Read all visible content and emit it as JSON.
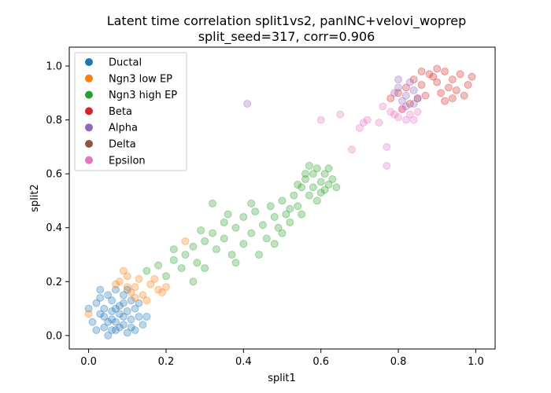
{
  "chart_data": {
    "type": "scatter",
    "title": "Latent time correlation split1vs2, panINC+velovi_woprep",
    "subtitle": "split_seed=317, corr=0.906",
    "xlabel": "split1",
    "ylabel": "split2",
    "xlim": [
      -0.05,
      1.05
    ],
    "ylim": [
      -0.05,
      1.07
    ],
    "xticks": [
      "0.0",
      "0.2",
      "0.4",
      "0.6",
      "0.8",
      "1.0"
    ],
    "yticks": [
      "0.0",
      "0.2",
      "0.4",
      "0.6",
      "0.8",
      "1.0"
    ],
    "grid": false,
    "legend_position": "upper-left",
    "point_alpha": 0.3,
    "series": [
      {
        "name": "Ductal",
        "color": "#1f77b4",
        "points": [
          [
            0.02,
            0.02
          ],
          [
            0.05,
            0.05
          ],
          [
            0.07,
            0.02
          ],
          [
            0.09,
            0.04
          ],
          [
            0.1,
            0.01
          ],
          [
            0.04,
            0.1
          ],
          [
            0.06,
            0.13
          ],
          [
            0.08,
            0.08
          ],
          [
            0.03,
            0.08
          ],
          [
            0.11,
            0.06
          ],
          [
            0.12,
            0.1
          ],
          [
            0.05,
            0.15
          ],
          [
            0.07,
            0.17
          ],
          [
            0.09,
            0.12
          ],
          [
            0.13,
            0.07
          ],
          [
            0.02,
            0.12
          ],
          [
            0.06,
            0.06
          ],
          [
            0.08,
            0.03
          ],
          [
            0.1,
            0.09
          ],
          [
            0.04,
            0.03
          ],
          [
            0.14,
            0.04
          ],
          [
            0.01,
            0.05
          ],
          [
            0.07,
            0.1
          ],
          [
            0.09,
            0.15
          ],
          [
            0.11,
            0.13
          ],
          [
            0.03,
            0.14
          ],
          [
            0.12,
            0.02
          ],
          [
            0.05,
            0.0
          ],
          [
            0.1,
            0.17
          ],
          [
            0.06,
            0.09
          ],
          [
            0.08,
            0.11
          ],
          [
            0.13,
            0.12
          ],
          [
            0.0,
            0.1
          ],
          [
            0.04,
            0.07
          ],
          [
            0.07,
            0.05
          ],
          [
            0.09,
            0.07
          ],
          [
            0.11,
            0.03
          ],
          [
            0.15,
            0.07
          ],
          [
            0.03,
            0.17
          ],
          [
            0.06,
            0.02
          ]
        ]
      },
      {
        "name": "Ngn3 low EP",
        "color": "#ff7f0e",
        "points": [
          [
            0.08,
            0.2
          ],
          [
            0.1,
            0.22
          ],
          [
            0.12,
            0.18
          ],
          [
            0.14,
            0.15
          ],
          [
            0.16,
            0.19
          ],
          [
            0.13,
            0.21
          ],
          [
            0.11,
            0.16
          ],
          [
            0.18,
            0.17
          ],
          [
            0.09,
            0.24
          ],
          [
            0.15,
            0.13
          ],
          [
            0.2,
            0.18
          ],
          [
            0.07,
            0.19
          ],
          [
            0.17,
            0.21
          ],
          [
            0.1,
            0.18
          ],
          [
            0.19,
            0.16
          ],
          [
            0.12,
            0.14
          ],
          [
            0.0,
            0.08
          ],
          [
            0.25,
            0.35
          ]
        ]
      },
      {
        "name": "Ngn3 high EP",
        "color": "#2ca02c",
        "points": [
          [
            0.15,
            0.24
          ],
          [
            0.18,
            0.26
          ],
          [
            0.2,
            0.22
          ],
          [
            0.22,
            0.28
          ],
          [
            0.24,
            0.25
          ],
          [
            0.25,
            0.3
          ],
          [
            0.27,
            0.33
          ],
          [
            0.28,
            0.27
          ],
          [
            0.3,
            0.35
          ],
          [
            0.3,
            0.25
          ],
          [
            0.32,
            0.38
          ],
          [
            0.33,
            0.32
          ],
          [
            0.35,
            0.42
          ],
          [
            0.35,
            0.36
          ],
          [
            0.37,
            0.3
          ],
          [
            0.38,
            0.4
          ],
          [
            0.4,
            0.44
          ],
          [
            0.4,
            0.34
          ],
          [
            0.42,
            0.38
          ],
          [
            0.43,
            0.46
          ],
          [
            0.45,
            0.41
          ],
          [
            0.46,
            0.36
          ],
          [
            0.47,
            0.48
          ],
          [
            0.48,
            0.44
          ],
          [
            0.49,
            0.4
          ],
          [
            0.5,
            0.5
          ],
          [
            0.51,
            0.45
          ],
          [
            0.52,
            0.42
          ],
          [
            0.53,
            0.52
          ],
          [
            0.54,
            0.48
          ],
          [
            0.55,
            0.55
          ],
          [
            0.55,
            0.45
          ],
          [
            0.56,
            0.58
          ],
          [
            0.57,
            0.52
          ],
          [
            0.58,
            0.6
          ],
          [
            0.58,
            0.55
          ],
          [
            0.59,
            0.62
          ],
          [
            0.6,
            0.57
          ],
          [
            0.6,
            0.53
          ],
          [
            0.61,
            0.6
          ],
          [
            0.62,
            0.56
          ],
          [
            0.62,
            0.62
          ],
          [
            0.63,
            0.58
          ],
          [
            0.64,
            0.55
          ],
          [
            0.56,
            0.6
          ],
          [
            0.54,
            0.56
          ],
          [
            0.59,
            0.5
          ],
          [
            0.52,
            0.47
          ],
          [
            0.57,
            0.63
          ],
          [
            0.61,
            0.54
          ],
          [
            0.32,
            0.49
          ],
          [
            0.38,
            0.27
          ],
          [
            0.44,
            0.3
          ],
          [
            0.22,
            0.32
          ],
          [
            0.27,
            0.2
          ],
          [
            0.48,
            0.34
          ],
          [
            0.36,
            0.45
          ],
          [
            0.5,
            0.38
          ],
          [
            0.42,
            0.49
          ],
          [
            0.29,
            0.39
          ]
        ]
      },
      {
        "name": "Beta",
        "color": "#d62728",
        "points": [
          [
            0.8,
            0.9
          ],
          [
            0.82,
            0.92
          ],
          [
            0.84,
            0.95
          ],
          [
            0.86,
            0.93
          ],
          [
            0.88,
            0.97
          ],
          [
            0.9,
            0.94
          ],
          [
            0.92,
            0.98
          ],
          [
            0.94,
            0.95
          ],
          [
            0.96,
            0.97
          ],
          [
            0.98,
            0.93
          ],
          [
            0.91,
            0.9
          ],
          [
            0.93,
            0.92
          ],
          [
            0.87,
            0.89
          ],
          [
            0.85,
            0.88
          ],
          [
            0.95,
            0.91
          ],
          [
            0.89,
            0.96
          ],
          [
            0.97,
            0.89
          ],
          [
            0.83,
            0.86
          ],
          [
            0.81,
            0.84
          ],
          [
            0.99,
            0.96
          ],
          [
            0.92,
            0.87
          ],
          [
            0.78,
            0.88
          ],
          [
            0.9,
            0.99
          ],
          [
            0.86,
            0.98
          ],
          [
            0.94,
            0.88
          ]
        ]
      },
      {
        "name": "Alpha",
        "color": "#9467bd",
        "points": [
          [
            0.8,
            0.92
          ],
          [
            0.82,
            0.89
          ],
          [
            0.84,
            0.91
          ],
          [
            0.81,
            0.87
          ],
          [
            0.83,
            0.94
          ],
          [
            0.85,
            0.88
          ],
          [
            0.79,
            0.9
          ],
          [
            0.82,
            0.85
          ],
          [
            0.84,
            0.86
          ],
          [
            0.8,
            0.95
          ],
          [
            0.41,
            0.86
          ]
        ]
      },
      {
        "name": "Delta",
        "color": "#8c564b",
        "points": []
      },
      {
        "name": "Epsilon",
        "color": "#e377c2",
        "points": [
          [
            0.6,
            0.8
          ],
          [
            0.65,
            0.82
          ],
          [
            0.7,
            0.77
          ],
          [
            0.72,
            0.8
          ],
          [
            0.75,
            0.79
          ],
          [
            0.76,
            0.85
          ],
          [
            0.77,
            0.7
          ],
          [
            0.78,
            0.83
          ],
          [
            0.8,
            0.81
          ],
          [
            0.81,
            0.84
          ],
          [
            0.83,
            0.82
          ],
          [
            0.84,
            0.8
          ],
          [
            0.68,
            0.69
          ],
          [
            0.77,
            0.63
          ],
          [
            0.79,
            0.82
          ],
          [
            0.82,
            0.8
          ],
          [
            0.71,
            0.79
          ],
          [
            0.85,
            0.83
          ]
        ]
      }
    ]
  }
}
